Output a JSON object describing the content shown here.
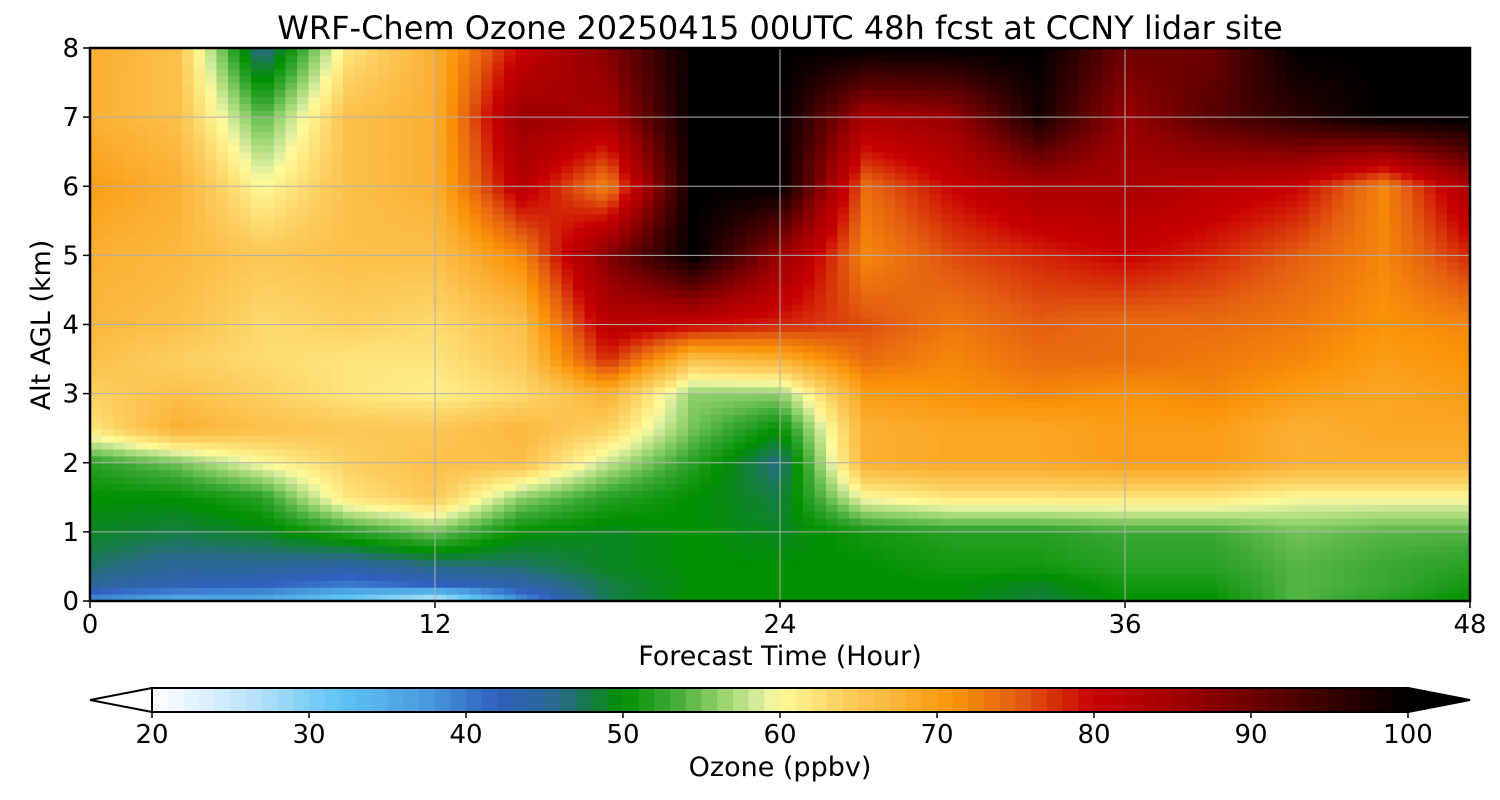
{
  "chart_data": {
    "type": "heatmap",
    "title": "WRF-Chem Ozone  20250415 00UTC 48h fcst at CCNY lidar site",
    "xlabel": "Forecast Time (Hour)",
    "ylabel": "Alt AGL (km)",
    "xlim": [
      0,
      48
    ],
    "ylim": [
      0,
      8
    ],
    "xticks": [
      0,
      12,
      24,
      36,
      48
    ],
    "yticks": [
      0,
      1,
      2,
      3,
      4,
      5,
      6,
      7,
      8
    ],
    "grid": true,
    "x": [
      0,
      3,
      6,
      9,
      12,
      15,
      18,
      21,
      24,
      27,
      30,
      33,
      36,
      39,
      42,
      45,
      48
    ],
    "y": [
      0,
      0.25,
      0.5,
      1,
      1.5,
      2,
      2.5,
      3,
      3.5,
      4,
      5,
      6,
      7,
      8
    ],
    "z": [
      [
        38,
        35,
        35,
        30,
        24,
        38,
        48,
        50,
        50,
        50,
        50,
        48,
        50,
        50,
        54,
        52,
        50
      ],
      [
        45,
        43,
        42,
        40,
        42,
        44,
        48,
        50,
        50,
        50,
        50,
        49,
        51,
        51,
        54,
        53,
        51
      ],
      [
        47,
        45,
        45,
        44,
        46,
        47,
        49,
        50,
        50,
        50,
        51,
        51,
        52,
        52,
        54,
        53,
        52
      ],
      [
        49,
        48,
        49,
        52,
        55,
        50,
        49,
        50,
        49,
        51,
        52,
        52,
        53,
        53,
        55,
        54,
        54
      ],
      [
        50,
        50,
        52,
        62,
        65,
        56,
        52,
        50,
        48,
        60,
        62,
        62,
        62,
        62,
        60,
        60,
        60
      ],
      [
        52,
        55,
        60,
        64,
        66,
        66,
        58,
        52,
        46,
        68,
        69,
        69,
        70,
        70,
        68,
        68,
        68
      ],
      [
        62,
        68,
        66,
        65,
        65,
        67,
        64,
        55,
        50,
        68,
        69,
        69,
        70,
        70,
        68,
        69,
        69
      ],
      [
        64,
        66,
        64,
        62,
        61,
        63,
        68,
        56,
        56,
        70,
        71,
        72,
        71,
        72,
        70,
        69,
        70
      ],
      [
        66,
        64,
        63,
        62,
        62,
        65,
        78,
        66,
        68,
        74,
        72,
        74,
        74,
        73,
        72,
        70,
        71
      ],
      [
        67,
        66,
        63,
        64,
        63,
        66,
        82,
        80,
        78,
        76,
        73,
        75,
        74,
        74,
        73,
        71,
        72
      ],
      [
        68,
        67,
        65,
        66,
        66,
        72,
        88,
        100,
        86,
        72,
        76,
        78,
        80,
        78,
        75,
        72,
        78
      ],
      [
        70,
        68,
        60,
        66,
        68,
        82,
        72,
        100,
        100,
        74,
        80,
        84,
        84,
        82,
        80,
        72,
        84
      ],
      [
        68,
        66,
        54,
        66,
        68,
        86,
        84,
        100,
        100,
        84,
        86,
        98,
        86,
        92,
        96,
        100,
        100
      ],
      [
        68,
        66,
        45,
        62,
        68,
        80,
        88,
        100,
        100,
        100,
        100,
        100,
        90,
        90,
        100,
        100,
        100
      ]
    ],
    "colorbar": {
      "label": "Ozone  (ppbv)",
      "ticks": [
        20,
        30,
        40,
        50,
        60,
        70,
        80,
        90,
        100
      ],
      "min": 20,
      "max": 100,
      "extend": "both",
      "levels": [
        {
          "v": 20,
          "c": "#ffffff"
        },
        {
          "v": 26,
          "c": "#bfe5fb"
        },
        {
          "v": 32,
          "c": "#5ec4f4"
        },
        {
          "v": 37,
          "c": "#4b9fe0"
        },
        {
          "v": 42,
          "c": "#3060c0"
        },
        {
          "v": 46,
          "c": "#2a6a8a"
        },
        {
          "v": 50,
          "c": "#009000"
        },
        {
          "v": 53,
          "c": "#3aa834"
        },
        {
          "v": 56,
          "c": "#8ed06a"
        },
        {
          "v": 59,
          "c": "#e2f0a0"
        },
        {
          "v": 60,
          "c": "#fffa98"
        },
        {
          "v": 64,
          "c": "#fcd060"
        },
        {
          "v": 68,
          "c": "#fbb032"
        },
        {
          "v": 71,
          "c": "#fb9408"
        },
        {
          "v": 75,
          "c": "#e46010"
        },
        {
          "v": 80,
          "c": "#c80000"
        },
        {
          "v": 86,
          "c": "#9a0000"
        },
        {
          "v": 93,
          "c": "#4c0000"
        },
        {
          "v": 100,
          "c": "#000000"
        }
      ]
    }
  }
}
